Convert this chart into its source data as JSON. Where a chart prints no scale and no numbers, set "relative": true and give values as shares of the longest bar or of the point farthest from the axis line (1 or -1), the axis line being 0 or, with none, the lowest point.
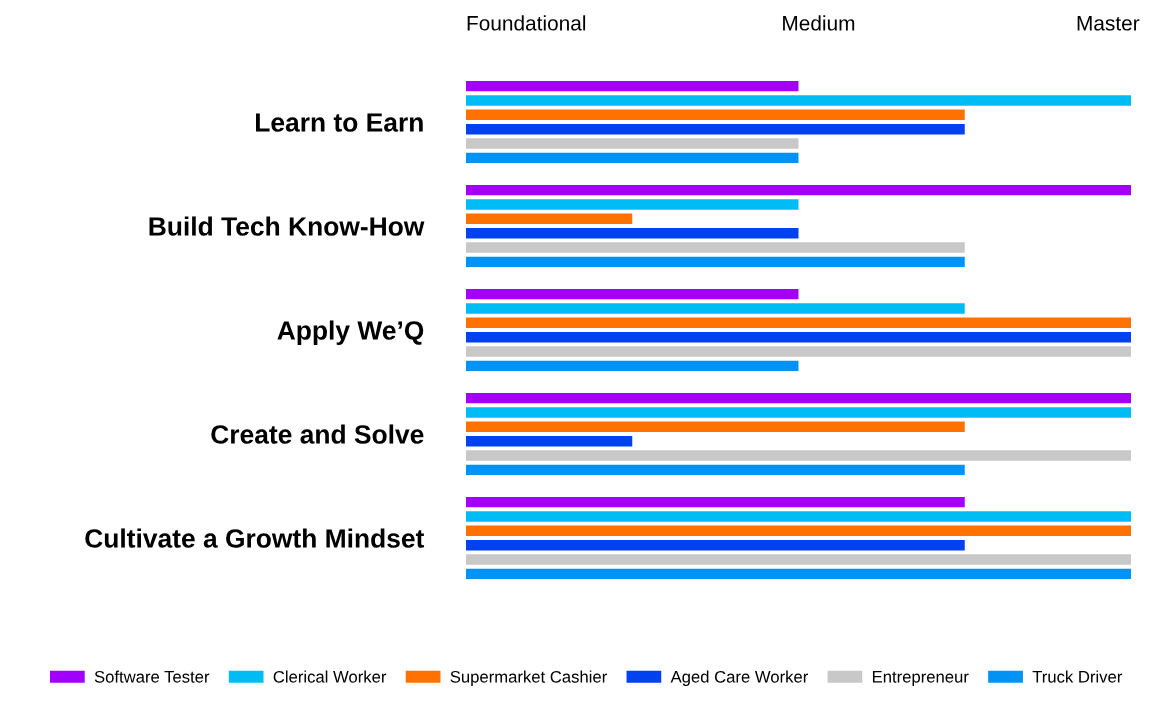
{
  "chart_data": {
    "type": "bar",
    "orientation": "horizontal",
    "relative": true,
    "tick_labels": "y",
    "grid": false,
    "legend": "bottom",
    "categories": [
      "Learn to Earn",
      "Build Tech Know-How",
      "Apply We’Q",
      "Create and Solve",
      "Cultivate a Growth Mindset"
    ],
    "annotations": [
      "Foundational",
      "Medium",
      "Master"
    ],
    "series": [
      {
        "name": "Software Tester",
        "color": "#a100ff",
        "values": [
          0.5,
          1,
          0.5,
          1,
          0.75
        ]
      },
      {
        "name": "Clerical Worker",
        "color": "#00bcf5",
        "values": [
          1,
          0.5,
          0.75,
          1,
          1
        ]
      },
      {
        "name": "Supermarket Cashier",
        "color": "#ff7100",
        "values": [
          0.75,
          0.25,
          1,
          0.75,
          1
        ]
      },
      {
        "name": "Aged Care Worker",
        "color": "#0041f0",
        "values": [
          0.75,
          0.5,
          1,
          0.25,
          0.75
        ]
      },
      {
        "name": "Entrepreneur",
        "color": "#c8c8c8",
        "values": [
          0.5,
          0.75,
          1,
          1,
          1
        ]
      },
      {
        "name": "Truck Driver",
        "color": "#0093f5",
        "values": [
          0.5,
          0.75,
          0.5,
          0.75,
          1
        ]
      }
    ]
  }
}
